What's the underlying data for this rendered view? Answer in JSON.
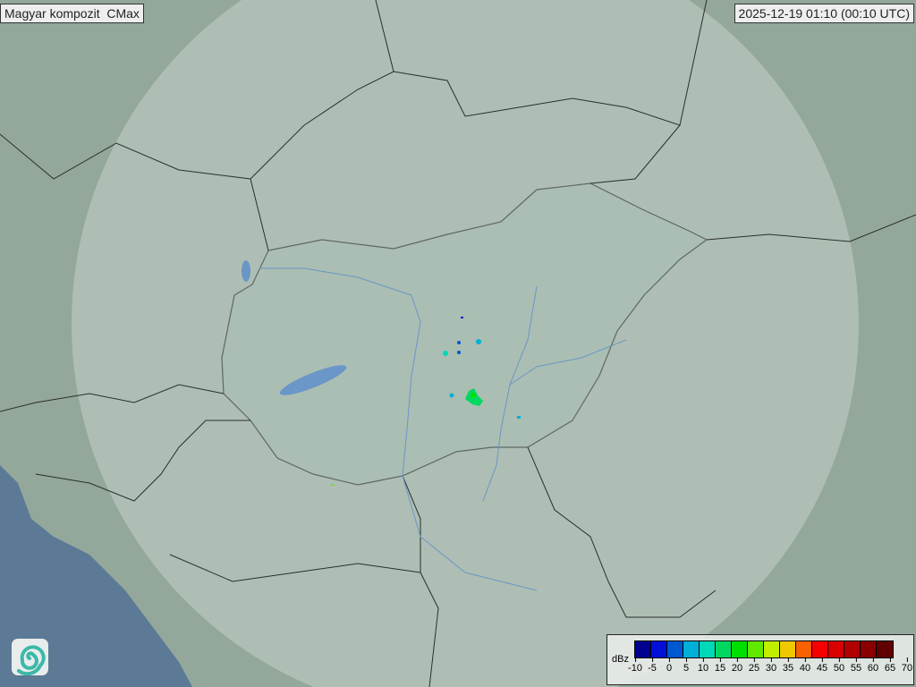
{
  "title": "Magyar kompozit  CMax",
  "timestamp": "2025-12-19 01:10 (00:10 UTC)",
  "legend": {
    "unit": "dBz",
    "labels": [
      "-10",
      "-5",
      "0",
      "5",
      "10",
      "15",
      "20",
      "25",
      "30",
      "35",
      "40",
      "45",
      "50",
      "55",
      "60",
      "65",
      "70"
    ],
    "colors": [
      "#000090",
      "#0010d8",
      "#0058d0",
      "#00b0d8",
      "#00d8b8",
      "#00d860",
      "#00e000",
      "#60e800",
      "#c0f000",
      "#f0c800",
      "#f86000",
      "#f80000",
      "#d80000",
      "#b00000",
      "#880000",
      "#600000"
    ]
  },
  "logo": "weather-service-swirl-logo",
  "colors": {
    "land": "#93a79b",
    "radar_coverage": "#b7c7bd",
    "sea": "#5c7a95",
    "border": "#2c2f2c",
    "river": "#6a96c8"
  }
}
